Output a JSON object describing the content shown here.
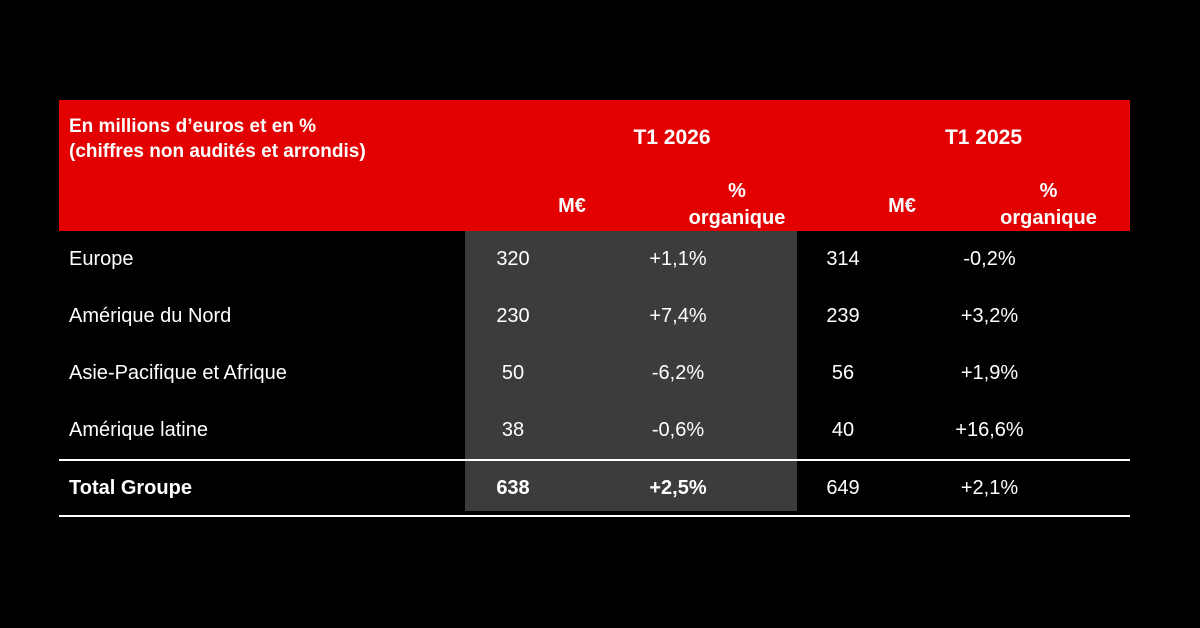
{
  "header": {
    "unit_line1": "En millions d’euros et en %",
    "unit_line2": "(chiffres non audités et arrondis)",
    "period_current": "T1 2026",
    "period_previous": "T1 2025",
    "col_amount": "M€",
    "col_pct_line1": "%",
    "col_pct_line2": "organique"
  },
  "rows": [
    {
      "label": "Europe",
      "m_2026": "320",
      "pct_2026": "+1,1%",
      "m_2025": "314",
      "pct_2025": "-0,2%"
    },
    {
      "label": "Amérique du Nord",
      "m_2026": "230",
      "pct_2026": "+7,4%",
      "m_2025": "239",
      "pct_2025": "+3,2%"
    },
    {
      "label": "Asie-Pacifique et Afrique",
      "m_2026": "50",
      "pct_2026": "-6,2%",
      "m_2025": "56",
      "pct_2025": "+1,9%"
    },
    {
      "label": "Amérique latine",
      "m_2026": "38",
      "pct_2026": "-0,6%",
      "m_2025": "40",
      "pct_2025": "+16,6%"
    }
  ],
  "total": {
    "label": "Total Groupe",
    "m_2026": "638",
    "pct_2026": "+2,5%",
    "m_2025": "649",
    "pct_2025": "+2,1%"
  },
  "colors": {
    "header_bg": "#e30000",
    "highlight_column_bg": "#3c3c3c",
    "page_bg": "#000000"
  }
}
